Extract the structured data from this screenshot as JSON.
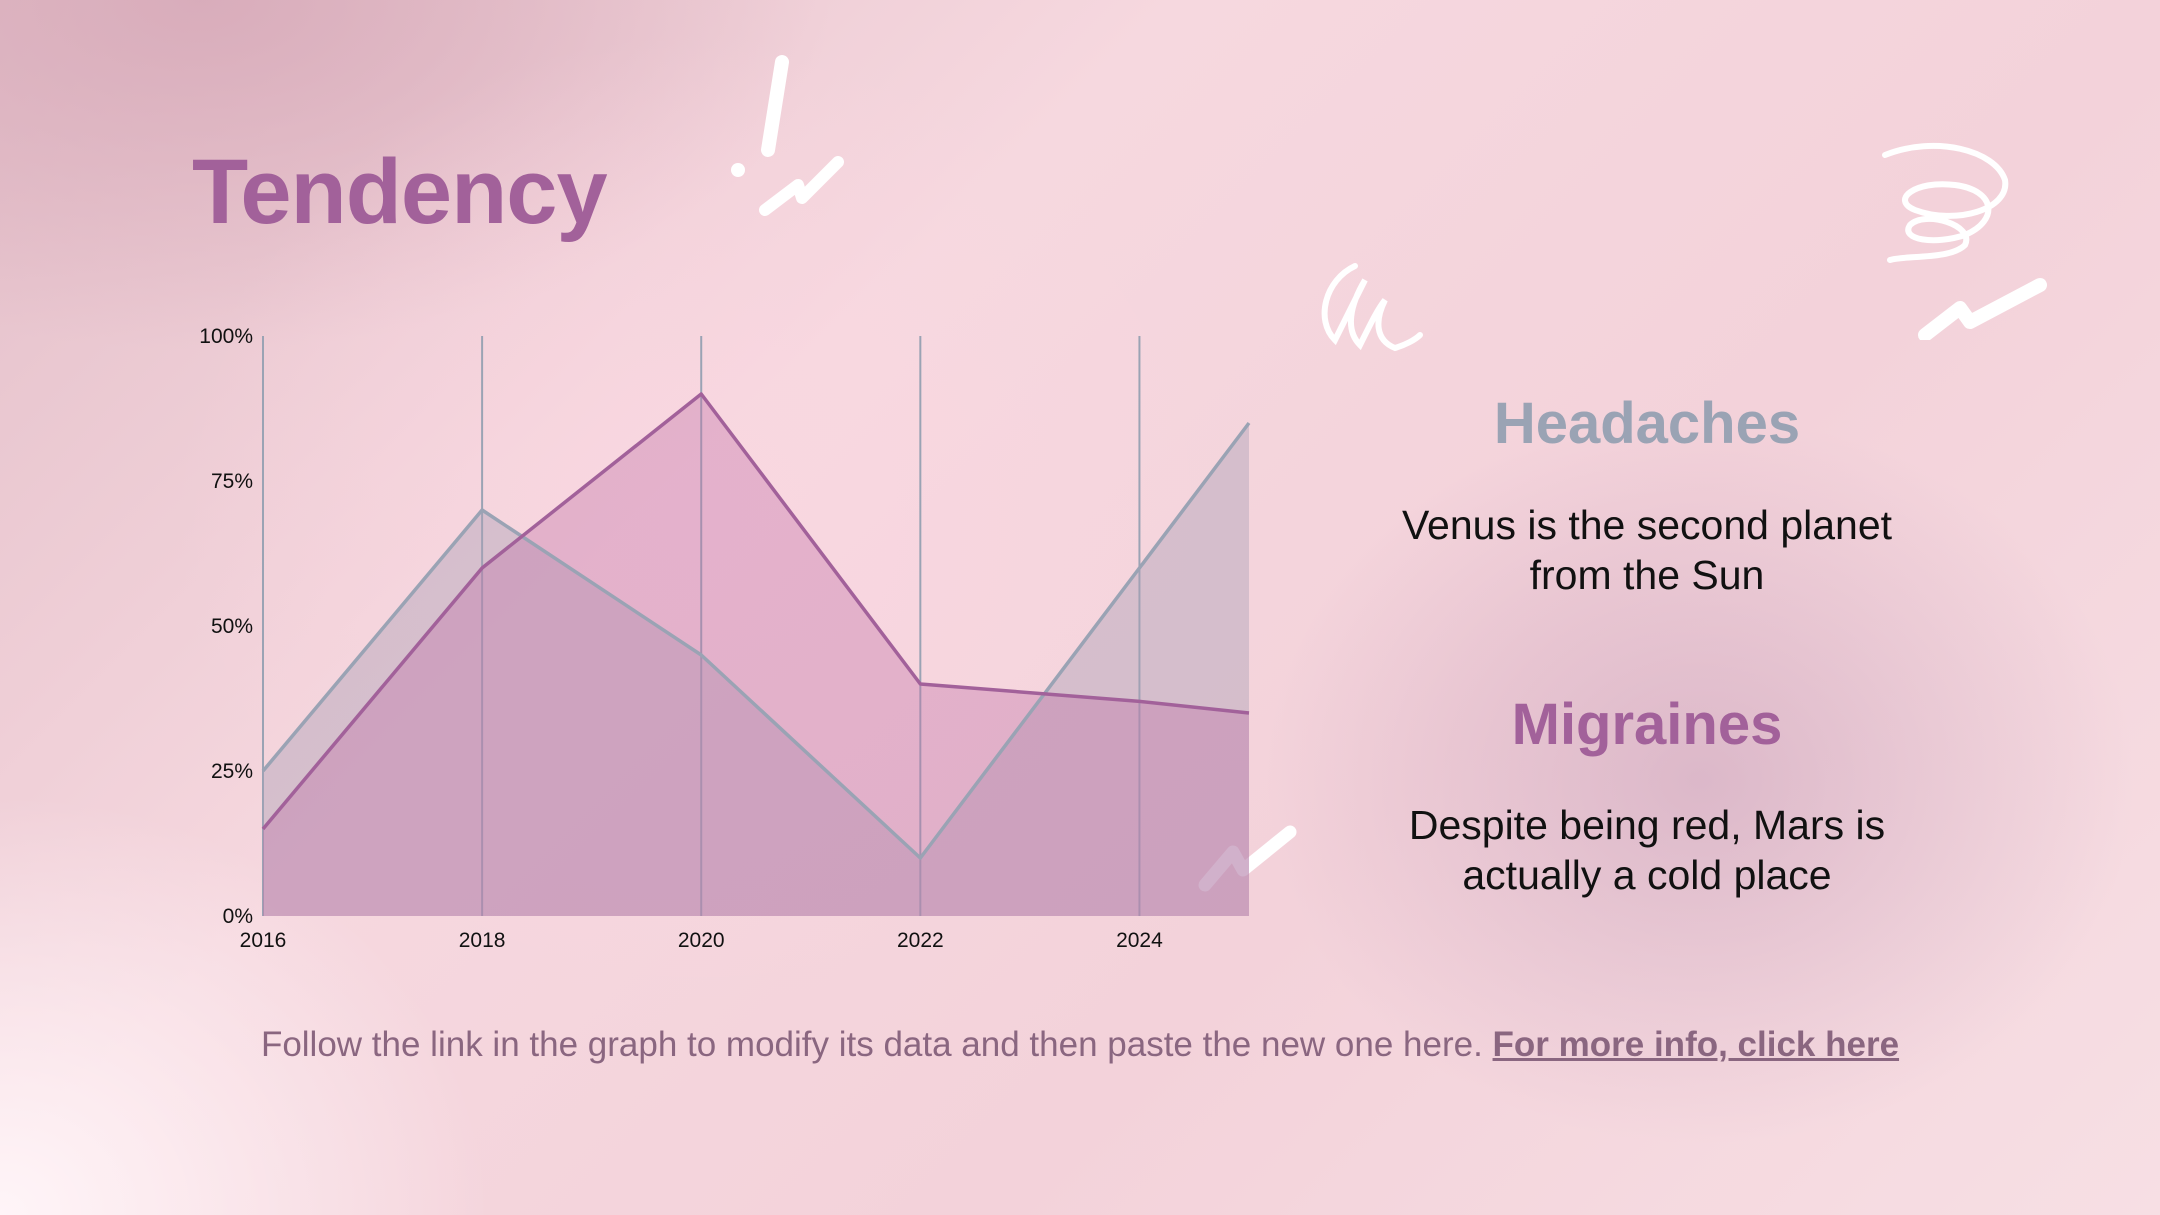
{
  "title": "Tendency",
  "colors": {
    "migraines": "#a2619a",
    "headaches": "#9aa3b4",
    "title": "#a2619a",
    "footer": "#8a6680"
  },
  "chart_data": {
    "type": "area",
    "x": [
      2016,
      2018,
      2020,
      2022,
      2024,
      2025
    ],
    "x_ticks": [
      "2016",
      "2018",
      "2020",
      "2022",
      "2024"
    ],
    "y_ticks": [
      "0%",
      "25%",
      "50%",
      "75%",
      "100%"
    ],
    "ylim": [
      0,
      100
    ],
    "grid": "vertical",
    "series": [
      {
        "name": "Headaches",
        "values": [
          25,
          70,
          45,
          10,
          60,
          85
        ],
        "color": "#9aa3b4"
      },
      {
        "name": "Migraines",
        "values": [
          15,
          60,
          90,
          40,
          37,
          35
        ],
        "color": "#a2619a"
      }
    ]
  },
  "headaches": {
    "heading": "Headaches",
    "line1": "Venus is the second planet",
    "line2": "from the Sun"
  },
  "migraines": {
    "heading": "Migraines",
    "line1": "Despite being red, Mars is",
    "line2": "actually a cold place"
  },
  "footer": {
    "text": "Follow the link in the graph to modify its data and then paste the new one here.",
    "link": "For more info, click here"
  }
}
